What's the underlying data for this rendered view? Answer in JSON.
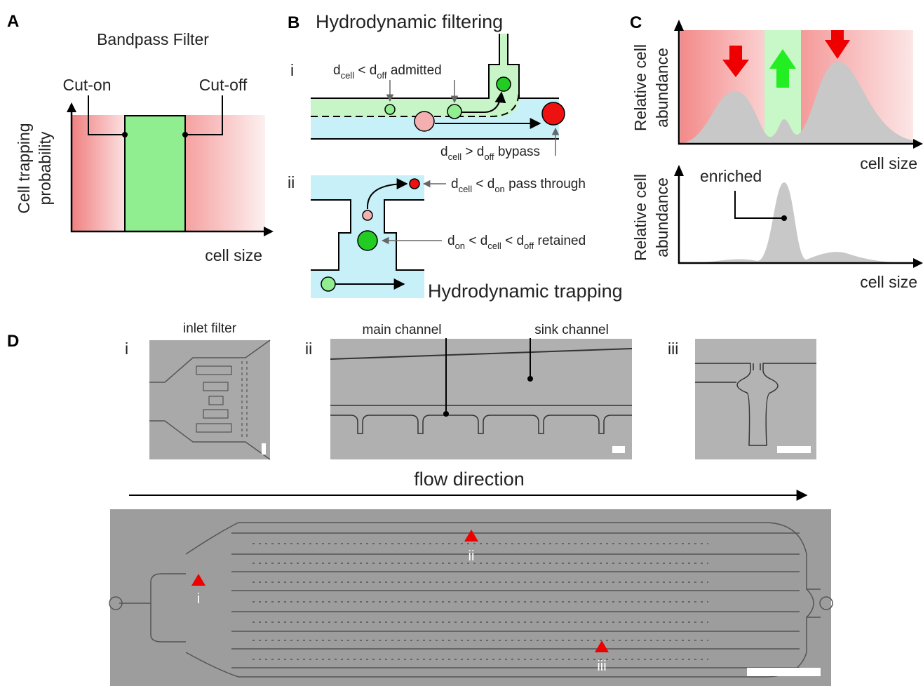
{
  "panels": {
    "a": {
      "letter": "A",
      "title": "Bandpass Filter",
      "cut_on": "Cut-on",
      "cut_off": "Cut-off",
      "y_label": [
        "Cell trapping",
        "probability"
      ],
      "x_label": "cell size"
    },
    "b": {
      "letter": "B",
      "title": "Hydrodynamic filtering",
      "sub_i": "i",
      "admitted": [
        "d",
        "cell",
        " < d",
        "off",
        " admitted"
      ],
      "bypass": [
        "d",
        "cell",
        " > d",
        "off",
        " bypass"
      ],
      "sub_ii": "ii",
      "pass_through": [
        "d",
        "cell",
        " < d",
        "on",
        " pass through"
      ],
      "retained": [
        "d",
        "on",
        " < d",
        "cell",
        " < d",
        "off",
        " retained"
      ],
      "trapping": "Hydrodynamic trapping"
    },
    "c": {
      "letter": "C",
      "top_y_label": [
        "Relative cell",
        "abundance"
      ],
      "top_x_label": "cell size",
      "bottom_y_label": [
        "Relative cell",
        "abundance"
      ],
      "bottom_x_label": "cell size",
      "enriched": "enriched"
    },
    "d": {
      "letter": "D",
      "image_i_label": "i",
      "inlet_filter": "inlet filter",
      "image_ii_label": "ii",
      "main_channel": "main channel",
      "sink_channel": "sink channel",
      "image_iii_label": "iii",
      "flow": "flow direction",
      "markers": [
        "i",
        "ii",
        "iii"
      ]
    }
  }
}
